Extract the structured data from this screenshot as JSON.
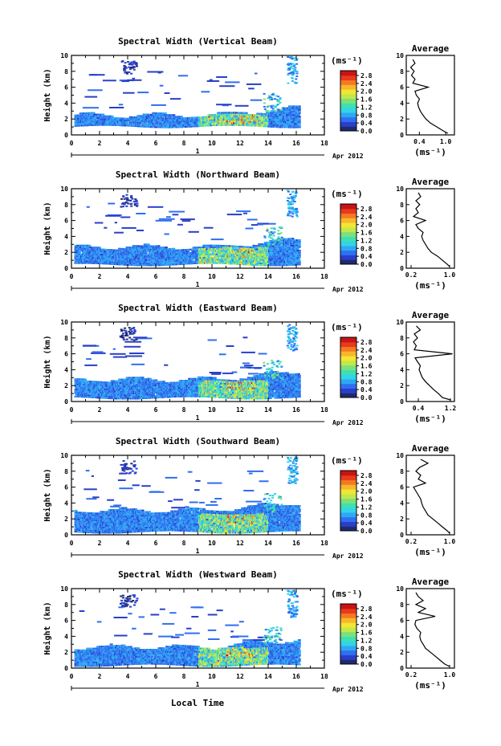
{
  "date_label": "Apr 2012",
  "day_label": "1",
  "xlabel": "Local Time",
  "colorbar": {
    "unit": "(ms⁻¹)",
    "ticks": [
      "0.0",
      "0.4",
      "0.8",
      "1.2",
      "1.6",
      "2.0",
      "2.4",
      "2.8"
    ],
    "colors": [
      "#1f2a6e",
      "#2a3fc8",
      "#2f6ff0",
      "#2ea8f5",
      "#33d4e8",
      "#3fe0b0",
      "#7ee07a",
      "#c2e84a",
      "#f2e634",
      "#f8b62a",
      "#f47a22",
      "#e83a1c",
      "#c81414"
    ]
  },
  "chart_data": [
    {
      "type": "heatmap",
      "title": "Spectral Width (Vertical Beam)",
      "ylabel": "Height (km)",
      "xlim": [
        0,
        18
      ],
      "ylim": [
        0,
        10
      ],
      "xticks": [
        "0",
        "2",
        "4",
        "6",
        "8",
        "10",
        "12",
        "14",
        "16",
        "18"
      ],
      "yticks": [
        "0",
        "2",
        "4",
        "6",
        "8",
        "10"
      ],
      "data_span_hours": [
        0,
        16.2
      ],
      "cloud_base_km": 1.0,
      "cloud_top_km": 3.0,
      "average_profile": {
        "title": "Average",
        "xlabel": "(ms⁻¹)",
        "xticks": [
          "0.4",
          "1.0"
        ],
        "xlim": [
          0.1,
          1.2
        ],
        "yticks": [
          "0",
          "2",
          "4",
          "6",
          "8",
          "10"
        ],
        "height_km": [
          0.2,
          0.5,
          1,
          1.5,
          2,
          2.5,
          3,
          3.5,
          4,
          4.5,
          5,
          5.5,
          6,
          6.5,
          7,
          7.5,
          8,
          8.5,
          9,
          9.5
        ],
        "width_ms": [
          1.05,
          0.95,
          0.8,
          0.65,
          0.55,
          0.48,
          0.42,
          0.38,
          0.36,
          0.4,
          0.33,
          0.3,
          0.6,
          0.25,
          0.3,
          0.22,
          0.28,
          0.2,
          0.3,
          0.25
        ]
      }
    },
    {
      "type": "heatmap",
      "title": "Spectral Width (Northward Beam)",
      "ylabel": "Height (km)",
      "xlim": [
        0,
        18
      ],
      "ylim": [
        0,
        10
      ],
      "xticks": [
        "0",
        "2",
        "4",
        "6",
        "8",
        "10",
        "12",
        "14",
        "16",
        "18"
      ],
      "yticks": [
        "0",
        "2",
        "4",
        "6",
        "8",
        "10"
      ],
      "data_span_hours": [
        0,
        16.2
      ],
      "cloud_base_km": 0.4,
      "cloud_top_km": 3.2,
      "average_profile": {
        "title": "Average",
        "xlabel": "(ms⁻¹)",
        "xticks": [
          "0.2",
          "1.0"
        ],
        "xlim": [
          0.1,
          1.1
        ],
        "yticks": [
          "0",
          "2",
          "4",
          "6",
          "8",
          "10"
        ],
        "height_km": [
          0.2,
          0.5,
          1,
          1.5,
          2,
          2.5,
          3,
          3.5,
          4,
          4.5,
          5,
          5.5,
          6,
          6.5,
          7,
          7.5,
          8,
          8.5,
          9,
          9.5
        ],
        "width_ms": [
          1.0,
          0.95,
          0.85,
          0.75,
          0.62,
          0.55,
          0.5,
          0.45,
          0.42,
          0.45,
          0.35,
          0.3,
          0.5,
          0.25,
          0.35,
          0.3,
          0.38,
          0.3,
          0.4,
          0.35
        ]
      }
    },
    {
      "type": "heatmap",
      "title": "Spectral Width (Eastward Beam)",
      "ylabel": "Height (km)",
      "xlim": [
        0,
        18
      ],
      "ylim": [
        0,
        10
      ],
      "xticks": [
        "0",
        "2",
        "4",
        "6",
        "8",
        "10",
        "12",
        "14",
        "16",
        "18"
      ],
      "yticks": [
        "0",
        "2",
        "4",
        "6",
        "8",
        "10"
      ],
      "data_span_hours": [
        0,
        16.2
      ],
      "cloud_base_km": 0.4,
      "cloud_top_km": 3.3,
      "average_profile": {
        "title": "Average",
        "xlabel": "(ms⁻¹)",
        "xticks": [
          "0.4",
          "1.2"
        ],
        "xlim": [
          0.1,
          1.3
        ],
        "yticks": [
          "0",
          "2",
          "4",
          "6",
          "8",
          "10"
        ],
        "height_km": [
          0.2,
          0.5,
          1,
          1.5,
          2,
          2.5,
          3,
          3.5,
          4,
          4.5,
          5,
          5.5,
          6,
          6.5,
          7,
          7.5,
          8,
          8.5,
          9,
          9.5
        ],
        "width_ms": [
          1.2,
          1.0,
          0.9,
          0.78,
          0.68,
          0.58,
          0.5,
          0.46,
          0.42,
          0.45,
          0.38,
          0.32,
          1.25,
          0.3,
          0.35,
          0.28,
          0.38,
          0.3,
          0.45,
          0.35
        ]
      }
    },
    {
      "type": "heatmap",
      "title": "Spectral Width (Southward Beam)",
      "ylabel": "Height (km)",
      "xlim": [
        0,
        18
      ],
      "ylim": [
        0,
        10
      ],
      "xticks": [
        "0",
        "2",
        "4",
        "6",
        "8",
        "10",
        "12",
        "14",
        "16",
        "18"
      ],
      "yticks": [
        "0",
        "2",
        "4",
        "6",
        "8",
        "10"
      ],
      "data_span_hours": [
        0,
        16.2
      ],
      "cloud_base_km": 0.3,
      "cloud_top_km": 3.6,
      "average_profile": {
        "title": "Average",
        "xlabel": "(ms⁻¹)",
        "xticks": [
          "0.2",
          "1.0"
        ],
        "xlim": [
          0.1,
          1.1
        ],
        "yticks": [
          "0",
          "2",
          "4",
          "6",
          "8",
          "10"
        ],
        "height_km": [
          0.2,
          0.5,
          1,
          1.5,
          2,
          2.5,
          3,
          3.5,
          4,
          4.5,
          5,
          5.5,
          6,
          6.5,
          7,
          7.5,
          8,
          8.5,
          9,
          9.5
        ],
        "width_ms": [
          1.0,
          0.95,
          0.85,
          0.75,
          0.65,
          0.55,
          0.5,
          0.45,
          0.42,
          0.4,
          0.35,
          0.3,
          0.25,
          0.5,
          0.35,
          0.4,
          0.3,
          0.38,
          0.55,
          0.4
        ]
      }
    },
    {
      "type": "heatmap",
      "title": "Spectral Width (Westward Beam)",
      "ylabel": "Height (km)",
      "xlim": [
        0,
        18
      ],
      "ylim": [
        0,
        10
      ],
      "xticks": [
        "0",
        "2",
        "4",
        "6",
        "8",
        "10",
        "12",
        "14",
        "16",
        "18"
      ],
      "yticks": [
        "0",
        "2",
        "4",
        "6",
        "8",
        "10"
      ],
      "data_span_hours": [
        0,
        16.2
      ],
      "cloud_base_km": 0.3,
      "cloud_top_km": 3.2,
      "average_profile": {
        "title": "Average",
        "xlabel": "(ms⁻¹)",
        "xticks": [
          "0.2",
          "1.0"
        ],
        "xlim": [
          0.1,
          1.1
        ],
        "yticks": [
          "0",
          "2",
          "4",
          "6",
          "8",
          "10"
        ],
        "height_km": [
          0.2,
          0.5,
          1,
          1.5,
          2,
          2.5,
          3,
          3.5,
          4,
          4.5,
          5,
          5.5,
          6,
          6.5,
          7,
          7.5,
          8,
          8.5,
          9,
          9.5
        ],
        "width_ms": [
          1.0,
          0.9,
          0.8,
          0.7,
          0.6,
          0.5,
          0.45,
          0.4,
          0.38,
          0.4,
          0.32,
          0.28,
          0.3,
          0.7,
          0.35,
          0.5,
          0.3,
          0.45,
          0.35,
          0.3
        ]
      }
    }
  ]
}
